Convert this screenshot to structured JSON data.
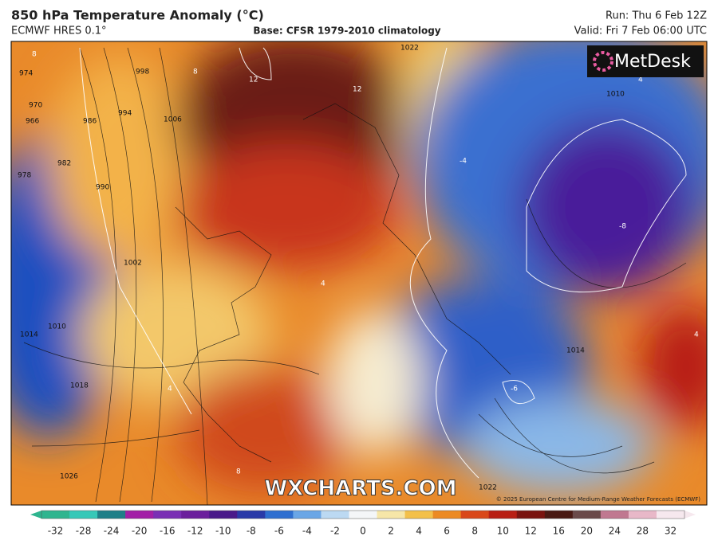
{
  "header": {
    "title": "850 hPa Temperature Anomaly (°C)",
    "model": "ECMWF HRES 0.1°",
    "base": "Base: CFSR 1979-2010 climatology",
    "run": "Run: Thu 6 Feb 12Z",
    "valid": "Valid: Fri 7 Feb 06:00 UTC"
  },
  "logo": "MetDesk",
  "watermark": "WXCHARTS.COM",
  "copyright": "© 2025 European Centre for Medium-Range Weather Forecasts (ECMWF)",
  "isobar_labels": [
    "974",
    "970",
    "966",
    "978",
    "982",
    "986",
    "990",
    "994",
    "998",
    "1002",
    "1006",
    "1010",
    "1014",
    "1018",
    "1022",
    "1026",
    "1010",
    "1014",
    "1022"
  ],
  "anomaly_labels": [
    "8",
    "12",
    "12",
    "8",
    "4",
    "4",
    "-4",
    "-8",
    "-6",
    "4",
    "8",
    "4"
  ],
  "colorbar": {
    "ticks": [
      -32,
      -28,
      -24,
      -20,
      -16,
      -12,
      -10,
      -8,
      -6,
      -4,
      -2,
      0,
      2,
      4,
      6,
      8,
      10,
      12,
      16,
      20,
      24,
      28,
      32
    ],
    "colors": [
      "#2fb58f",
      "#36c8b8",
      "#1f7f88",
      "#a21fa6",
      "#7a2fb4",
      "#6b1f9c",
      "#4a1a8a",
      "#2a3aa8",
      "#2f6fd0",
      "#6aa6e6",
      "#bcd9f2",
      "#f4f6f8",
      "#f6e6a8",
      "#f3c04a",
      "#ec8a22",
      "#d9481a",
      "#b81f14",
      "#7a1410",
      "#4a1a14",
      "#6a4a4a",
      "#c07890",
      "#e8b8c8",
      "#f6e8ee"
    ]
  }
}
